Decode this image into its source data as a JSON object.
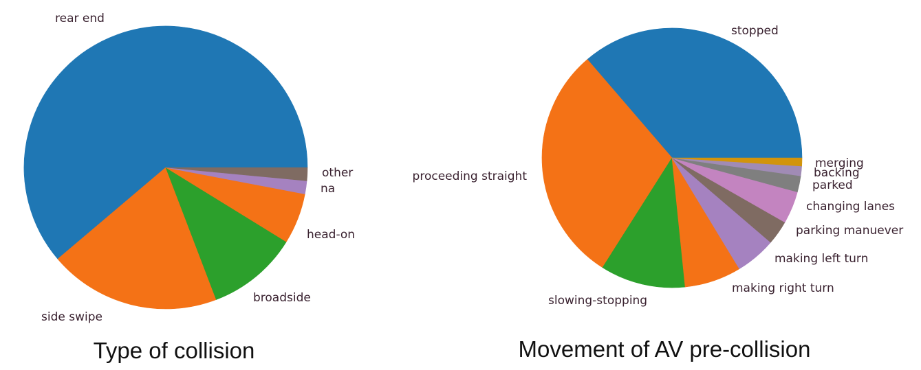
{
  "chart_data": [
    {
      "type": "pie",
      "title": "Type of collision",
      "categories": [
        "rear end",
        "side swipe",
        "broadside",
        "head-on",
        "na",
        "other"
      ],
      "values": [
        61.2,
        19.6,
        10.4,
        5.8,
        1.5,
        1.5
      ],
      "colors": [
        "#1f77b4",
        "#f47216",
        "#2ca02c",
        "#f47216",
        "#a582c0",
        "#7f6b62"
      ],
      "start_angle_deg": 0,
      "direction": "counterclockwise",
      "legend": "none",
      "value_labels": false
    },
    {
      "type": "pie",
      "title": "Movement of AV pre-collision",
      "categories": [
        "stopped",
        "proceeding straight",
        "slowing-stopping",
        "making right turn",
        "making left turn",
        "parking manuever",
        "changing lanes",
        "parked",
        "backing",
        "merging"
      ],
      "values": [
        36,
        29.5,
        10.5,
        7,
        5,
        3,
        4,
        2,
        1.2,
        1
      ],
      "colors": [
        "#1f77b4",
        "#f47216",
        "#2ca02c",
        "#f47216",
        "#a582c0",
        "#7f6b62",
        "#c384c0",
        "#7f7f7f",
        "#a08bb5",
        "#d1940c"
      ],
      "start_angle_deg": 0,
      "direction": "counterclockwise",
      "legend": "none",
      "value_labels": false
    }
  ]
}
